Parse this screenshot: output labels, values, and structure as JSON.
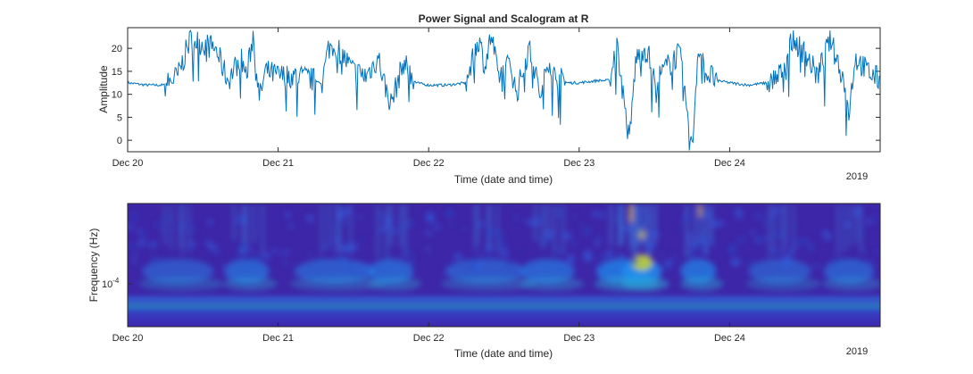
{
  "chart_data": [
    {
      "type": "line",
      "title": "Power Signal and Scalogram at R",
      "xlabel": "Time (date and time)",
      "ylabel": "Amplitude",
      "x_ticks": [
        "Dec 20",
        "Dec 21",
        "Dec 22",
        "Dec 23",
        "Dec 24"
      ],
      "x_year": "2019",
      "xlim": [
        "2019-12-20 00:00",
        "2019-12-25 00:00"
      ],
      "ylim": [
        -2.5,
        24.5
      ],
      "y_ticks": [
        0,
        5,
        10,
        15,
        20
      ],
      "grid": false,
      "series": [
        {
          "color": "#0072BD",
          "x": [
            "2019-12-20 00:00",
            "2019-12-20 03:00",
            "2019-12-20 06:00",
            "2019-12-20 08:00",
            "2019-12-20 10:00",
            "2019-12-20 12:00",
            "2019-12-20 14:00",
            "2019-12-20 16:00",
            "2019-12-20 18:00",
            "2019-12-20 19:00",
            "2019-12-20 20:00",
            "2019-12-20 21:00",
            "2019-12-20 22:00",
            "2019-12-21 00:00",
            "2019-12-21 03:00",
            "2019-12-21 06:00",
            "2019-12-21 07:00",
            "2019-12-21 08:00",
            "2019-12-21 09:00",
            "2019-12-21 10:00",
            "2019-12-21 12:00",
            "2019-12-21 14:00",
            "2019-12-21 16:00",
            "2019-12-21 17:00",
            "2019-12-21 18:00",
            "2019-12-21 20:00",
            "2019-12-21 22:00",
            "2019-12-22 00:00",
            "2019-12-22 03:00",
            "2019-12-22 06:00",
            "2019-12-22 08:00",
            "2019-12-22 09:00",
            "2019-12-22 10:00",
            "2019-12-22 11:00",
            "2019-12-22 12:00",
            "2019-12-22 13:00",
            "2019-12-22 14:00",
            "2019-12-22 16:00",
            "2019-12-22 18:00",
            "2019-12-22 19:00",
            "2019-12-22 20:00",
            "2019-12-22 22:00",
            "2019-12-23 00:00",
            "2019-12-23 03:00",
            "2019-12-23 05:00",
            "2019-12-23 06:00",
            "2019-12-23 07:00",
            "2019-12-23 08:00",
            "2019-12-23 09:00",
            "2019-12-23 10:00",
            "2019-12-23 11:00",
            "2019-12-23 12:00",
            "2019-12-23 14:00",
            "2019-12-23 16:00",
            "2019-12-23 18:00",
            "2019-12-23 19:00",
            "2019-12-23 20:00",
            "2019-12-23 22:00",
            "2019-12-24 00:00",
            "2019-12-24 03:00",
            "2019-12-24 06:00",
            "2019-12-24 08:00",
            "2019-12-24 10:00",
            "2019-12-24 12:00",
            "2019-12-24 14:00",
            "2019-12-24 16:00",
            "2019-12-24 18:00",
            "2019-12-24 19:00",
            "2019-12-24 20:00",
            "2019-12-24 22:00",
            "2019-12-25 00:00"
          ],
          "y": [
            12.5,
            12,
            12,
            14,
            22,
            21,
            20,
            13,
            18,
            14,
            23,
            9,
            15,
            14,
            14,
            13,
            12.5,
            20,
            21,
            19,
            15,
            14,
            18,
            12,
            8,
            17,
            12.5,
            12,
            12,
            12.5,
            22,
            16,
            23,
            14,
            15,
            17,
            10,
            20,
            9,
            18,
            14,
            12.5,
            12.5,
            13,
            13,
            21,
            10,
            -0.5,
            17,
            20,
            19,
            12.5,
            16,
            19,
            -2.3,
            21,
            15,
            13,
            12.5,
            12,
            12.5,
            14,
            22,
            19,
            14,
            22,
            14,
            6,
            18,
            15,
            13
          ]
        }
      ]
    },
    {
      "type": "heatmap",
      "xlabel": "Time (date and time)",
      "ylabel": "Frequency (Hz)",
      "x_ticks": [
        "Dec 20",
        "Dec 21",
        "Dec 22",
        "Dec 23",
        "Dec 24"
      ],
      "x_year": "2019",
      "y_scale": "log",
      "y_tick_base": "10",
      "y_tick_exp": "-4",
      "colormap": "parula"
    }
  ]
}
